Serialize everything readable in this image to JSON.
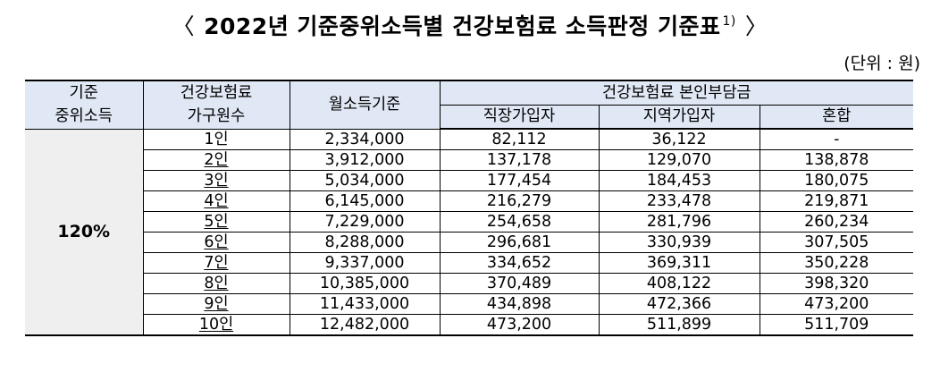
{
  "header": {
    "bracket_left": "〈",
    "title": "2022년 기준중위소득별 건강보험료 소득판정 기준표",
    "footnote_mark": "1)",
    "bracket_right": "〉",
    "unit": "(단위 : 원)"
  },
  "table": {
    "headers": {
      "median_income_line1": "기준",
      "median_income_line2": "중위소득",
      "household_line1": "건강보험료",
      "household_line2": "가구원수",
      "monthly_income": "월소득기준",
      "premium_group": "건강보험료 본인부담금",
      "employee": "직장가입자",
      "regional": "지역가입자",
      "mixed": "혼합"
    },
    "level": "120%",
    "rows": [
      {
        "households": "1인",
        "monthly_income": "2,334,000",
        "employee": "82,112",
        "regional": "36,122",
        "mixed": "-"
      },
      {
        "households": "2인",
        "monthly_income": "3,912,000",
        "employee": "137,178",
        "regional": "129,070",
        "mixed": "138,878"
      },
      {
        "households": "3인",
        "monthly_income": "5,034,000",
        "employee": "177,454",
        "regional": "184,453",
        "mixed": "180,075"
      },
      {
        "households": "4인",
        "monthly_income": "6,145,000",
        "employee": "216,279",
        "regional": "233,478",
        "mixed": "219,871"
      },
      {
        "households": "5인",
        "monthly_income": "7,229,000",
        "employee": "254,658",
        "regional": "281,796",
        "mixed": "260,234"
      },
      {
        "households": "6인",
        "monthly_income": "8,288,000",
        "employee": "296,681",
        "regional": "330,939",
        "mixed": "307,505"
      },
      {
        "households": "7인",
        "monthly_income": "9,337,000",
        "employee": "334,652",
        "regional": "369,311",
        "mixed": "350,228"
      },
      {
        "households": "8인",
        "monthly_income": "10,385,000",
        "employee": "370,489",
        "regional": "408,122",
        "mixed": "398,320"
      },
      {
        "households": "9인",
        "monthly_income": "11,433,000",
        "employee": "434,898",
        "regional": "472,366",
        "mixed": "473,200"
      },
      {
        "households": "10인",
        "monthly_income": "12,482,000",
        "employee": "473,200",
        "regional": "511,899",
        "mixed": "511,709"
      }
    ]
  }
}
